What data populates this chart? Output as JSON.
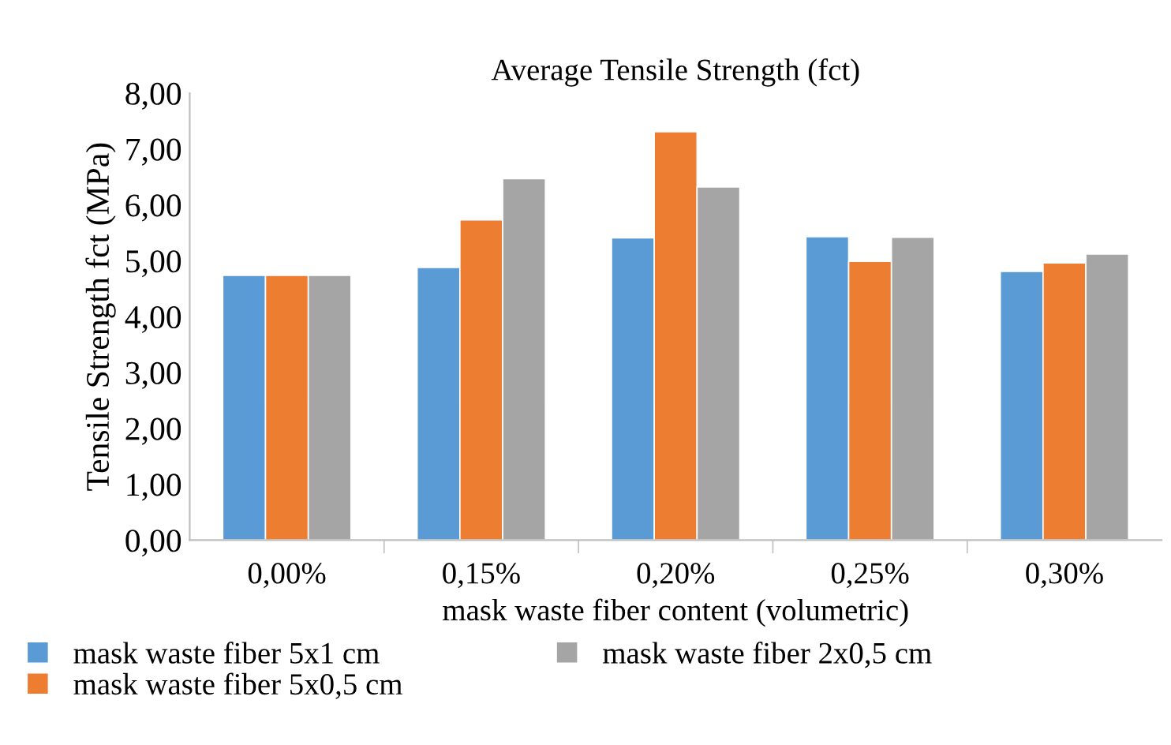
{
  "chart_data": {
    "type": "bar",
    "title": "Average Tensile Strength (fct)",
    "xlabel": "mask waste fiber content (volumetric)",
    "ylabel": "Tensile Strength fct (MPa)",
    "categories": [
      "0,00%",
      "0,15%",
      "0,20%",
      "0,25%",
      "0,30%"
    ],
    "series": [
      {
        "name": "mask waste fiber 5x1 cm",
        "color": "#5b9bd5",
        "values": [
          4.74,
          4.88,
          5.41,
          5.43,
          4.81
        ]
      },
      {
        "name": "mask waste fiber 5x0,5 cm",
        "color": "#ed7d31",
        "values": [
          4.74,
          5.73,
          7.31,
          4.99,
          4.96
        ]
      },
      {
        "name": "mask waste fiber 2x0,5 cm",
        "color": "#a5a5a5",
        "values": [
          4.74,
          6.47,
          6.32,
          5.42,
          5.12
        ]
      }
    ],
    "ylim": [
      0,
      8
    ],
    "yticks": [
      {
        "value": 0,
        "label": "0,00"
      },
      {
        "value": 1,
        "label": "1,00"
      },
      {
        "value": 2,
        "label": "2,00"
      },
      {
        "value": 3,
        "label": "3,00"
      },
      {
        "value": 4,
        "label": "4,00"
      },
      {
        "value": 5,
        "label": "5,00"
      },
      {
        "value": 6,
        "label": "6,00"
      },
      {
        "value": 7,
        "label": "7,00"
      },
      {
        "value": 8,
        "label": "8,00"
      }
    ],
    "grid": false,
    "legend": "bottom"
  }
}
